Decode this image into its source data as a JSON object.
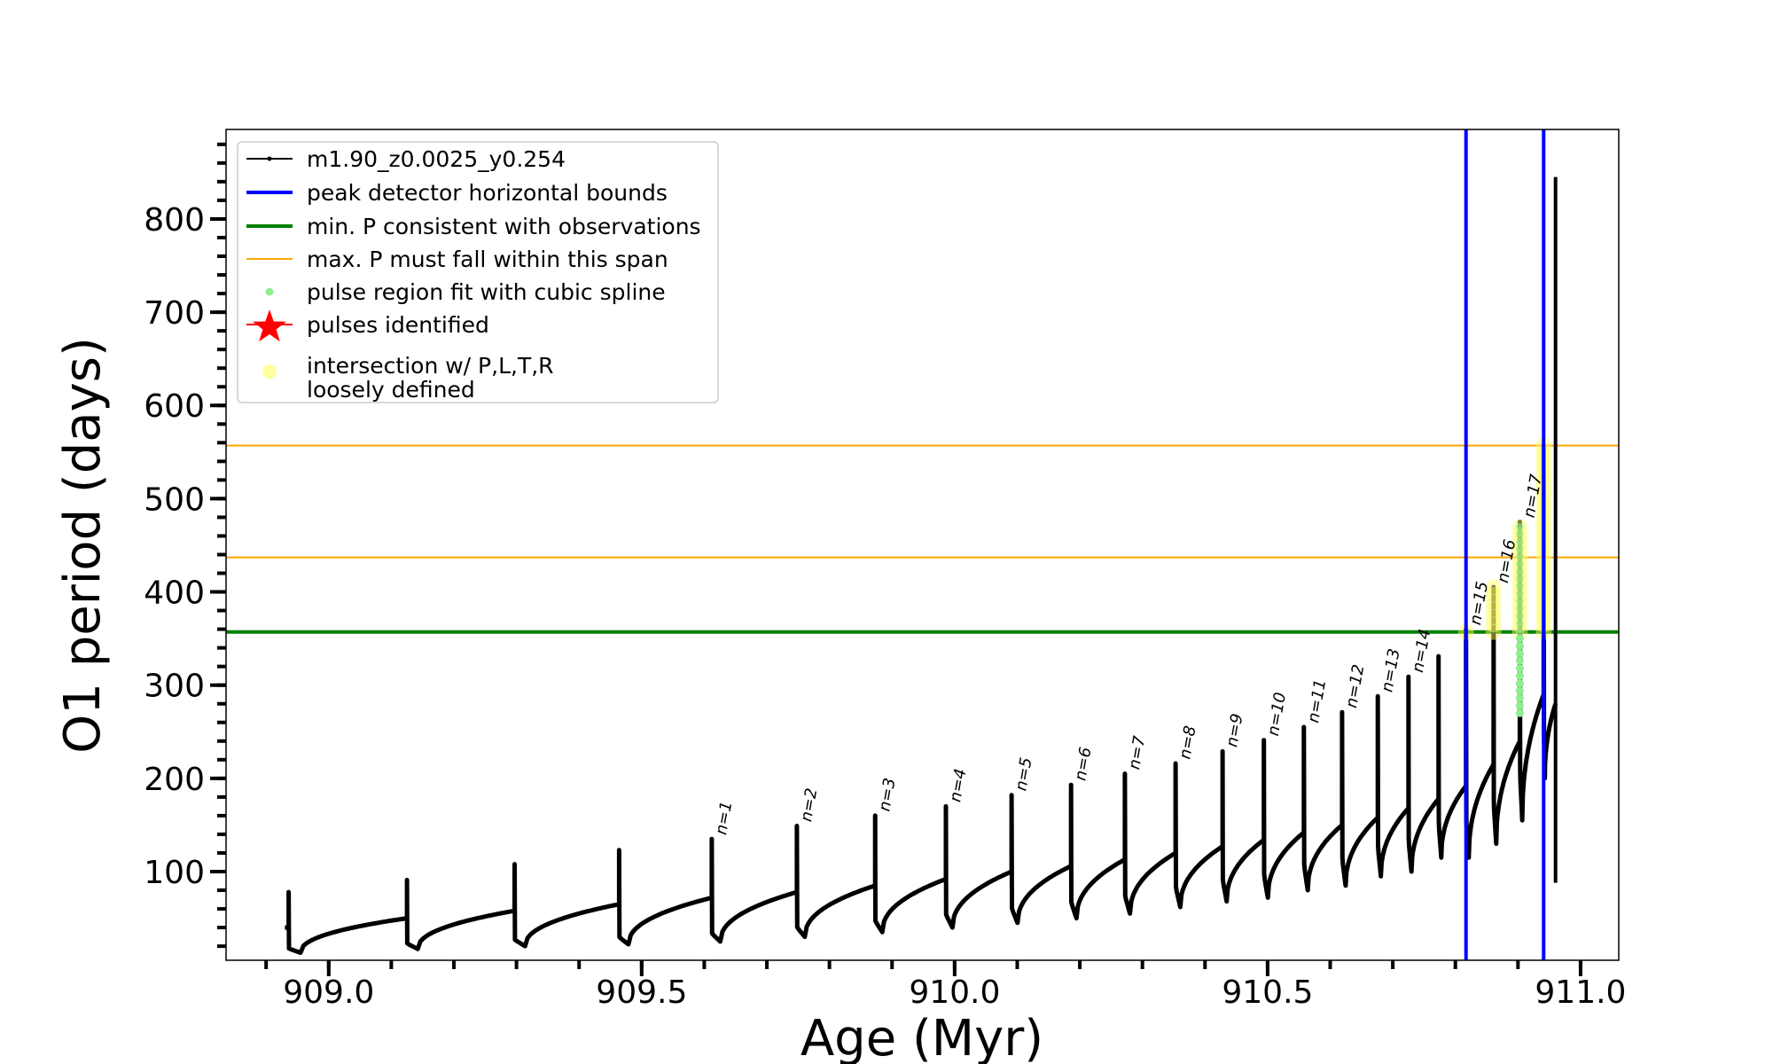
{
  "chart_data": {
    "type": "line",
    "title": "",
    "xlabel": "Age (Myr)",
    "ylabel": "O1 period (days)",
    "xlim": [
      908.836,
      911.061
    ],
    "ylim": [
      4.9,
      896
    ],
    "x_major_ticks": [
      909.0,
      909.5,
      910.0,
      910.5,
      911.0
    ],
    "x_tick_labels": [
      "909.0",
      "909.5",
      "910.0",
      "910.5",
      "911.0"
    ],
    "x_minor_step": 0.1,
    "y_major_ticks": [
      100,
      200,
      300,
      400,
      500,
      600,
      700,
      800
    ],
    "y_tick_labels": [
      "100",
      "200",
      "300",
      "400",
      "500",
      "600",
      "700",
      "800"
    ],
    "y_minor_step": 20,
    "grid": false,
    "legend_position": "top-left",
    "legend": [
      {
        "label": "m1.90_z0.0025_y0.254",
        "kind": "line-dot",
        "color": "#000000"
      },
      {
        "label": "peak detector horizontal bounds",
        "kind": "line",
        "color": "#0000ff"
      },
      {
        "label": "min. P consistent with observations",
        "kind": "line",
        "color": "#008000"
      },
      {
        "label": "max. P must fall within this span",
        "kind": "thin-line",
        "color": "#ffa500"
      },
      {
        "label": "pulse region fit with cubic spline",
        "kind": "dot",
        "color": "#90ee90"
      },
      {
        "label": "pulses identified",
        "kind": "star",
        "color": "#ff0000"
      },
      {
        "label": "intersection w/ P,L,T,R",
        "label2": "loosely defined",
        "kind": "big-dot",
        "color": "#ffffa0"
      }
    ],
    "series_start": {
      "age": 908.93,
      "period": 40
    },
    "pulses": [
      {
        "age": 908.936,
        "pre": 40,
        "peak": 78,
        "valley": 13,
        "label": ""
      },
      {
        "age": 909.125,
        "pre": 50,
        "peak": 91,
        "valley": 17,
        "label": ""
      },
      {
        "age": 909.297,
        "pre": 58,
        "peak": 108,
        "valley": 20,
        "label": ""
      },
      {
        "age": 909.464,
        "pre": 65,
        "peak": 123,
        "valley": 22,
        "label": ""
      },
      {
        "age": 909.612,
        "pre": 72,
        "peak": 135,
        "valley": 25,
        "label": "n=1"
      },
      {
        "age": 909.748,
        "pre": 78,
        "peak": 149,
        "valley": 30,
        "label": "n=2"
      },
      {
        "age": 909.873,
        "pre": 85,
        "peak": 160,
        "valley": 35,
        "label": "n=3"
      },
      {
        "age": 909.986,
        "pre": 92,
        "peak": 170,
        "valley": 40,
        "label": "n=4"
      },
      {
        "age": 910.091,
        "pre": 100,
        "peak": 182,
        "valley": 45,
        "label": "n=5"
      },
      {
        "age": 910.186,
        "pre": 106,
        "peak": 193,
        "valley": 50,
        "label": "n=6"
      },
      {
        "age": 910.272,
        "pre": 113,
        "peak": 205,
        "valley": 55,
        "label": "n=7"
      },
      {
        "age": 910.353,
        "pre": 120,
        "peak": 216,
        "valley": 62,
        "label": "n=8"
      },
      {
        "age": 910.428,
        "pre": 127,
        "peak": 229,
        "valley": 68,
        "label": "n=9"
      },
      {
        "age": 910.494,
        "pre": 134,
        "peak": 241,
        "valley": 72,
        "label": "n=10"
      },
      {
        "age": 910.558,
        "pre": 142,
        "peak": 255,
        "valley": 80,
        "label": "n=11"
      },
      {
        "age": 910.619,
        "pre": 150,
        "peak": 271,
        "valley": 85,
        "label": "n=12"
      },
      {
        "age": 910.676,
        "pre": 158,
        "peak": 288,
        "valley": 95,
        "label": "n=13"
      },
      {
        "age": 910.725,
        "pre": 168,
        "peak": 309,
        "valley": 100,
        "label": "n=14"
      },
      {
        "age": 910.773,
        "pre": 178,
        "peak": 331,
        "valley": 115,
        "label": ""
      },
      {
        "age": 910.817,
        "pre": 192,
        "peak": 360,
        "valley": 115,
        "label": "n=15"
      },
      {
        "age": 910.861,
        "pre": 215,
        "peak": 405,
        "valley": 130,
        "label": "n=16"
      },
      {
        "age": 910.903,
        "pre": 240,
        "peak": 475,
        "valley": 155,
        "label": "n=17"
      },
      {
        "age": 910.941,
        "pre": 290,
        "peak": 557,
        "valley": 200,
        "label": ""
      }
    ],
    "series_end": {
      "age": 910.96,
      "period": 280,
      "final_spike": [
        88,
        845
      ]
    },
    "peak_detector_bounds_age": [
      910.817,
      910.941
    ],
    "min_period_line": 357,
    "max_period_span": [
      437,
      557
    ],
    "spline_regions": [
      {
        "age": 910.903,
        "min": 270,
        "max": 475
      }
    ],
    "intersection_regions": [
      {
        "age": 910.817,
        "min": 357,
        "max": 362
      },
      {
        "age": 910.861,
        "min": 357,
        "max": 405
      },
      {
        "age": 910.903,
        "min": 357,
        "max": 475
      },
      {
        "age": 910.941,
        "min": 357,
        "max": 557
      }
    ],
    "colors": {
      "series": "#000000",
      "bounds": "#0000ff",
      "min_p": "#008000",
      "max_p": "#ffa500",
      "spline": "#90ee90",
      "intersection": "#ffff66"
    }
  }
}
